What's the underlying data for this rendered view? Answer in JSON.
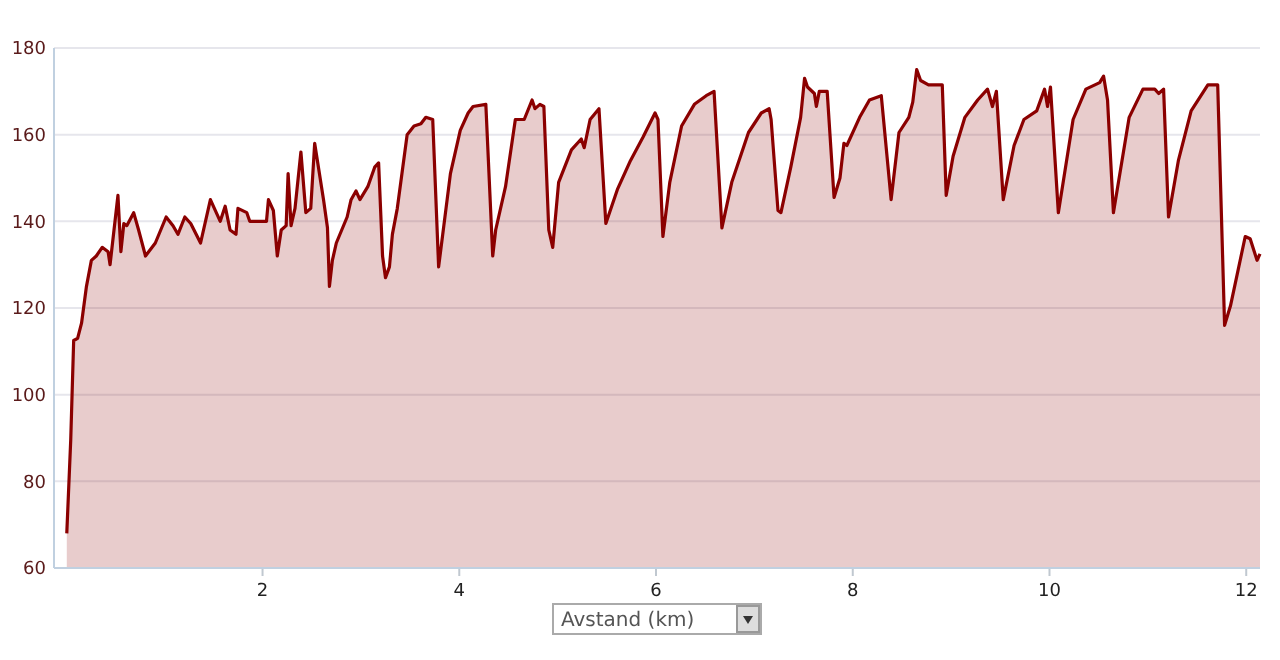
{
  "chart_data": {
    "type": "area",
    "xlabel": "Avstand (km)",
    "xlim": [
      -0.12,
      12.14
    ],
    "ylim": [
      60,
      180
    ],
    "xticks": [
      2,
      4,
      6,
      8,
      10,
      12
    ],
    "yticks": [
      60,
      80,
      100,
      120,
      140,
      160,
      180
    ],
    "grid": "y",
    "series": [
      {
        "color": "#8b0000",
        "x": [
          0.01,
          0.05,
          0.08,
          0.12,
          0.16,
          0.21,
          0.26,
          0.31,
          0.37,
          0.43,
          0.45,
          0.49,
          0.53,
          0.56,
          0.59,
          0.62,
          0.69,
          0.74,
          0.81,
          0.91,
          1.02,
          1.09,
          1.14,
          1.21,
          1.27,
          1.37,
          1.47,
          1.57,
          1.62,
          1.67,
          1.73,
          1.75,
          1.84,
          1.87,
          2.04,
          2.06,
          2.11,
          2.15,
          2.19,
          2.24,
          2.26,
          2.29,
          2.33,
          2.39,
          2.44,
          2.49,
          2.53,
          2.62,
          2.66,
          2.68,
          2.71,
          2.75,
          2.86,
          2.9,
          2.95,
          2.99,
          3.07,
          3.14,
          3.18,
          3.22,
          3.25,
          3.29,
          3.32,
          3.37,
          3.47,
          3.54,
          3.61,
          3.66,
          3.73,
          3.79,
          3.91,
          4.01,
          4.09,
          4.14,
          4.27,
          4.34,
          4.37,
          4.47,
          4.57,
          4.66,
          4.74,
          4.77,
          4.82,
          4.86,
          4.91,
          4.95,
          5.01,
          5.14,
          5.24,
          5.27,
          5.33,
          5.42,
          5.49,
          5.61,
          5.74,
          5.87,
          5.99,
          6.02,
          6.07,
          6.14,
          6.26,
          6.39,
          6.51,
          6.59,
          6.67,
          6.77,
          6.94,
          7.07,
          7.15,
          7.17,
          7.24,
          7.27,
          7.37,
          7.47,
          7.51,
          7.54,
          7.61,
          7.63,
          7.66,
          7.74,
          7.81,
          7.87,
          7.91,
          7.94,
          8.07,
          8.17,
          8.29,
          8.39,
          8.47,
          8.57,
          8.61,
          8.65,
          8.69,
          8.77,
          8.91,
          8.95,
          9.02,
          9.14,
          9.27,
          9.37,
          9.42,
          9.46,
          9.53,
          9.64,
          9.74,
          9.87,
          9.95,
          9.98,
          10.01,
          10.09,
          10.24,
          10.37,
          10.51,
          10.55,
          10.59,
          10.65,
          10.81,
          10.95,
          11.07,
          11.11,
          11.16,
          11.21,
          11.31,
          11.44,
          11.61,
          11.71,
          11.78,
          11.84,
          11.99,
          12.04,
          12.11,
          12.14
        ],
        "values": [
          68,
          89.5,
          112.5,
          113,
          116.5,
          125,
          131,
          132,
          134,
          133,
          130,
          138,
          146,
          133,
          139.5,
          139,
          142,
          138,
          132,
          135,
          141,
          139,
          137,
          141,
          139.5,
          135,
          145,
          140,
          143.5,
          138,
          137,
          143,
          142,
          140,
          140,
          145,
          142.5,
          132,
          138,
          139,
          151,
          139,
          143,
          156,
          142,
          143,
          158,
          145,
          138.5,
          125,
          131,
          135,
          141,
          145,
          147,
          145,
          148,
          152.5,
          153.5,
          132,
          127,
          129.5,
          137,
          143,
          160,
          162,
          162.5,
          164,
          163.5,
          129.5,
          151,
          161,
          165,
          166.5,
          167,
          132,
          138,
          148,
          163.5,
          163.5,
          168,
          166,
          167,
          166.5,
          138,
          134,
          149,
          156.5,
          159,
          157,
          163.5,
          166,
          139.5,
          147.5,
          154,
          159.5,
          165,
          163.5,
          136.5,
          149,
          162,
          167,
          169,
          170,
          138.5,
          149,
          160.5,
          165,
          166,
          163.5,
          142.5,
          142,
          152.5,
          164,
          173,
          171,
          169.5,
          166.5,
          170,
          170,
          145.5,
          150,
          158,
          157.5,
          164,
          168,
          169,
          145,
          160.5,
          164,
          167.5,
          175,
          172.5,
          171.5,
          171.5,
          146,
          155,
          164,
          168,
          170.5,
          166.5,
          170,
          145,
          157.5,
          163.5,
          165.5,
          170.5,
          166.5,
          171,
          142,
          163.5,
          170.5,
          172,
          173.5,
          168,
          142,
          164,
          170.5,
          170.5,
          169.5,
          170.5,
          141,
          154,
          165.5,
          171.5,
          171.5,
          116,
          120.5,
          136.5,
          136,
          131,
          132.5
        ]
      }
    ]
  }
}
